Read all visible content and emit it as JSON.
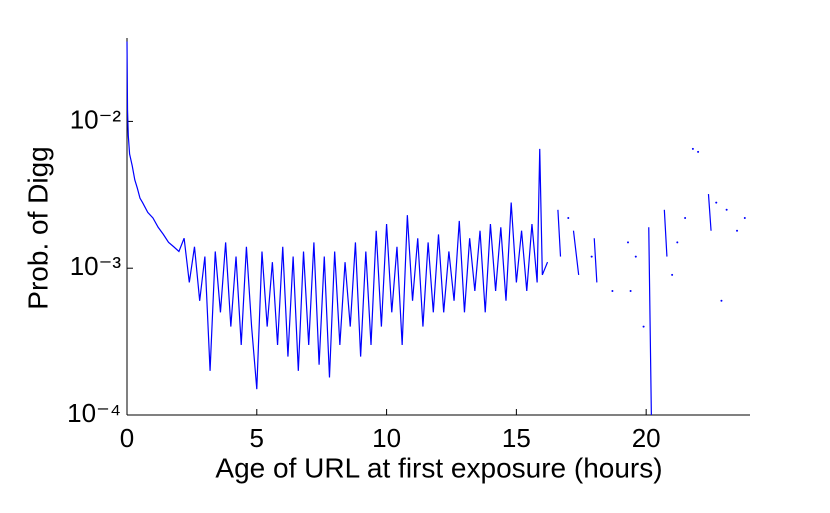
{
  "chart_data": {
    "type": "line",
    "xlabel": "Age of URL at first exposure (hours)",
    "ylabel": "Prob. of Digg",
    "xlim": [
      0,
      24
    ],
    "xticks": [
      0,
      5,
      10,
      15,
      20
    ],
    "ylim": [
      0.0001,
      0.037
    ],
    "log_y": true,
    "yticks": [
      {
        "value": 0.0001,
        "label": "10⁻⁴"
      },
      {
        "value": 0.001,
        "label": "10⁻³"
      },
      {
        "value": 0.01,
        "label": "10⁻²"
      }
    ],
    "series": [
      {
        "color": "#0000ff",
        "style": "line",
        "x": [
          0,
          0.02,
          0.05,
          0.1,
          0.2,
          0.3,
          0.4,
          0.5,
          0.6,
          0.8,
          1.0,
          1.2,
          1.4,
          1.6,
          1.8,
          2.0,
          2.2,
          2.4,
          2.6,
          2.8,
          3.0,
          3.2,
          3.4,
          3.6,
          3.8,
          4.0,
          4.2,
          4.4,
          4.6,
          4.8,
          5.0,
          5.2,
          5.4,
          5.6,
          5.8,
          6.0,
          6.2,
          6.4,
          6.6,
          6.8,
          7.0,
          7.2,
          7.4,
          7.6,
          7.8,
          8.0,
          8.2,
          8.4,
          8.6,
          8.8,
          9.0,
          9.2,
          9.4,
          9.6,
          9.8,
          10.0,
          10.2,
          10.4,
          10.6,
          10.8,
          11.0,
          11.2,
          11.4,
          11.6,
          11.8,
          12.0,
          12.2,
          12.4,
          12.6,
          12.8,
          13.0,
          13.2,
          13.4,
          13.6,
          13.8,
          14.0,
          14.2,
          14.4,
          14.6,
          14.8,
          15.0,
          15.2,
          15.4,
          15.6,
          15.8,
          15.9,
          16.0,
          16.2,
          16.4,
          16.6,
          16.7,
          16.9,
          17.2,
          17.4,
          17.7,
          18.0,
          18.1,
          19.0,
          20.1,
          20.2,
          20.5,
          20.7,
          20.8,
          21.5,
          22.4,
          22.5
        ],
        "values": [
          0.035,
          0.012,
          0.008,
          0.006,
          0.005,
          0.004,
          0.0035,
          0.003,
          0.0028,
          0.0024,
          0.0022,
          0.0019,
          0.0017,
          0.0015,
          0.0014,
          0.0013,
          0.0016,
          0.0008,
          0.0014,
          0.0006,
          0.0012,
          0.0002,
          0.0013,
          0.0005,
          0.0015,
          0.0004,
          0.0012,
          0.0003,
          0.0014,
          0.0004,
          0.00015,
          0.0013,
          0.0004,
          0.0011,
          0.0003,
          0.0014,
          0.00025,
          0.0012,
          0.0002,
          0.0013,
          0.0003,
          0.0015,
          0.00022,
          0.0012,
          0.00018,
          0.0013,
          0.0003,
          0.0011,
          0.0004,
          0.0015,
          0.00025,
          0.0013,
          0.0003,
          0.0018,
          0.0004,
          0.002,
          0.0005,
          0.0014,
          0.0003,
          0.0023,
          0.0006,
          0.0016,
          0.0004,
          0.0015,
          0.0005,
          0.0017,
          0.0005,
          0.0013,
          0.0006,
          0.0021,
          0.0005,
          0.0016,
          0.0007,
          0.0018,
          0.0005,
          0.002,
          0.0007,
          0.0019,
          0.0006,
          0.0028,
          0.0008,
          0.0018,
          0.0007,
          0.002,
          0.0008,
          0.0065,
          0.0009,
          0.0011,
          null,
          0.0025,
          0.0012,
          null,
          0.0018,
          0.0009,
          null,
          0.0016,
          0.0008,
          null,
          0.0019,
          0.0001,
          null,
          0.0025,
          0.0012,
          null,
          0.0032,
          0.0018
        ]
      },
      {
        "color": "#0000ff",
        "style": "dots",
        "x": [
          17.0,
          17.9,
          18.7,
          19.3,
          19.4,
          19.6,
          19.9,
          21.0,
          21.2,
          21.5,
          21.8,
          22.0,
          22.7,
          22.9,
          23.1,
          23.5,
          23.8
        ],
        "values": [
          0.0022,
          0.0012,
          0.0007,
          0.0015,
          0.0007,
          0.0012,
          0.0004,
          0.0009,
          0.0015,
          0.0022,
          0.0065,
          0.0062,
          0.0028,
          0.0006,
          0.0025,
          0.0018,
          0.0022
        ]
      }
    ]
  }
}
